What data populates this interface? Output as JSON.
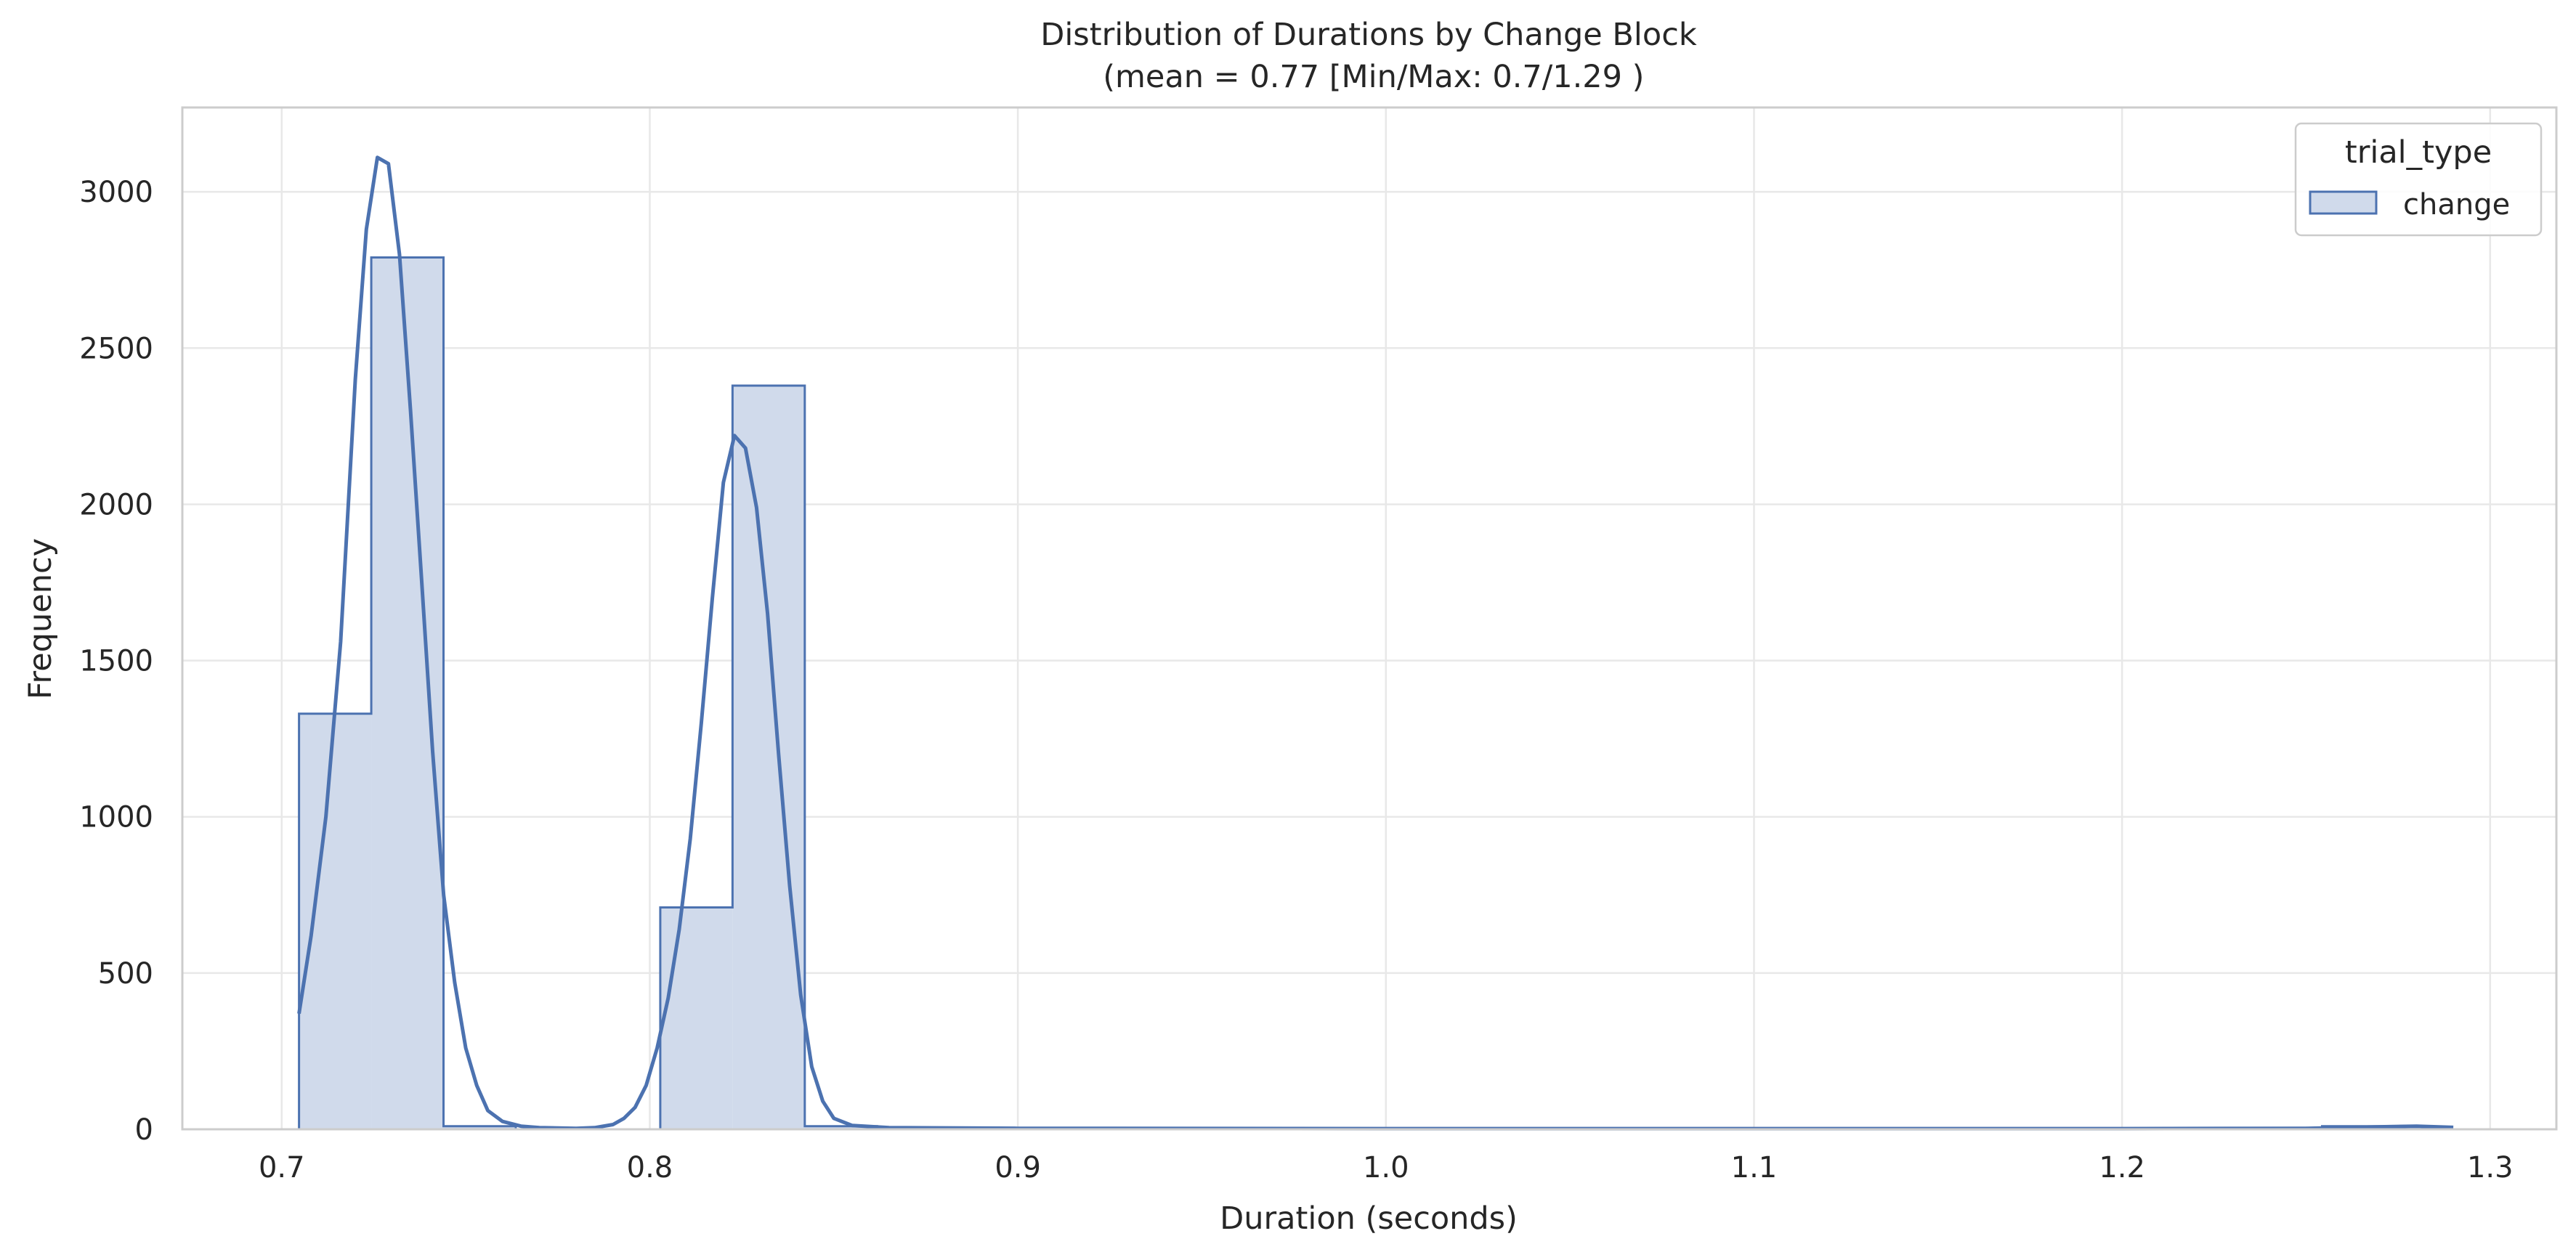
{
  "chart_data": {
    "type": "histogram",
    "title_line1": "Distribution of Durations by Change Block",
    "title_line2": " (mean = 0.77 [Min/Max: 0.7/1.29 )",
    "xlabel": "Duration (seconds)",
    "ylabel": "Frequency",
    "xlim": [
      0.673,
      1.318
    ],
    "ylim": [
      0,
      3270
    ],
    "xticks": [
      0.7,
      0.8,
      0.9,
      1.0,
      1.1,
      1.2,
      1.3
    ],
    "xtick_labels": [
      "0.7",
      "0.8",
      "0.9",
      "1.0",
      "1.1",
      "1.2",
      "1.3"
    ],
    "yticks": [
      0,
      500,
      1000,
      1500,
      2000,
      2500,
      3000
    ],
    "ytick_labels": [
      "0",
      "500",
      "1000",
      "1500",
      "2000",
      "2500",
      "3000"
    ],
    "grid": true,
    "legend": {
      "title": "trial_type",
      "position": "top-right",
      "entries": [
        "change"
      ]
    },
    "series": [
      {
        "name": "change",
        "color": "#4c72b0",
        "fill": "#d0daeb",
        "bin_start": 0.7047,
        "bin_width": 0.01963,
        "counts": [
          1330,
          2790,
          10,
          0,
          0,
          710,
          2380,
          10,
          0,
          0,
          0,
          0,
          0,
          0,
          0,
          0,
          0,
          0,
          0,
          0,
          0,
          0,
          0,
          0,
          0,
          0,
          0,
          0,
          10
        ],
        "kde": [
          [
            0.7047,
            370
          ],
          [
            0.708,
            620
          ],
          [
            0.712,
            1000
          ],
          [
            0.716,
            1560
          ],
          [
            0.72,
            2400
          ],
          [
            0.723,
            2880
          ],
          [
            0.726,
            3110
          ],
          [
            0.729,
            3090
          ],
          [
            0.732,
            2800
          ],
          [
            0.735,
            2300
          ],
          [
            0.738,
            1760
          ],
          [
            0.741,
            1210
          ],
          [
            0.744,
            750
          ],
          [
            0.747,
            470
          ],
          [
            0.75,
            260
          ],
          [
            0.753,
            140
          ],
          [
            0.756,
            60
          ],
          [
            0.76,
            25
          ],
          [
            0.765,
            10
          ],
          [
            0.77,
            5
          ],
          [
            0.78,
            3
          ],
          [
            0.785,
            5
          ],
          [
            0.79,
            15
          ],
          [
            0.793,
            35
          ],
          [
            0.796,
            70
          ],
          [
            0.799,
            140
          ],
          [
            0.802,
            260
          ],
          [
            0.805,
            420
          ],
          [
            0.808,
            640
          ],
          [
            0.811,
            930
          ],
          [
            0.814,
            1300
          ],
          [
            0.817,
            1700
          ],
          [
            0.82,
            2070
          ],
          [
            0.823,
            2220
          ],
          [
            0.826,
            2180
          ],
          [
            0.829,
            1990
          ],
          [
            0.832,
            1650
          ],
          [
            0.835,
            1200
          ],
          [
            0.838,
            780
          ],
          [
            0.841,
            430
          ],
          [
            0.844,
            200
          ],
          [
            0.847,
            90
          ],
          [
            0.85,
            35
          ],
          [
            0.855,
            12
          ],
          [
            0.865,
            5
          ],
          [
            0.9,
            3
          ],
          [
            1.0,
            2
          ],
          [
            1.1,
            2
          ],
          [
            1.2,
            2
          ],
          [
            1.25,
            3
          ],
          [
            1.27,
            8
          ],
          [
            1.28,
            10
          ],
          [
            1.29,
            6
          ]
        ]
      }
    ]
  }
}
